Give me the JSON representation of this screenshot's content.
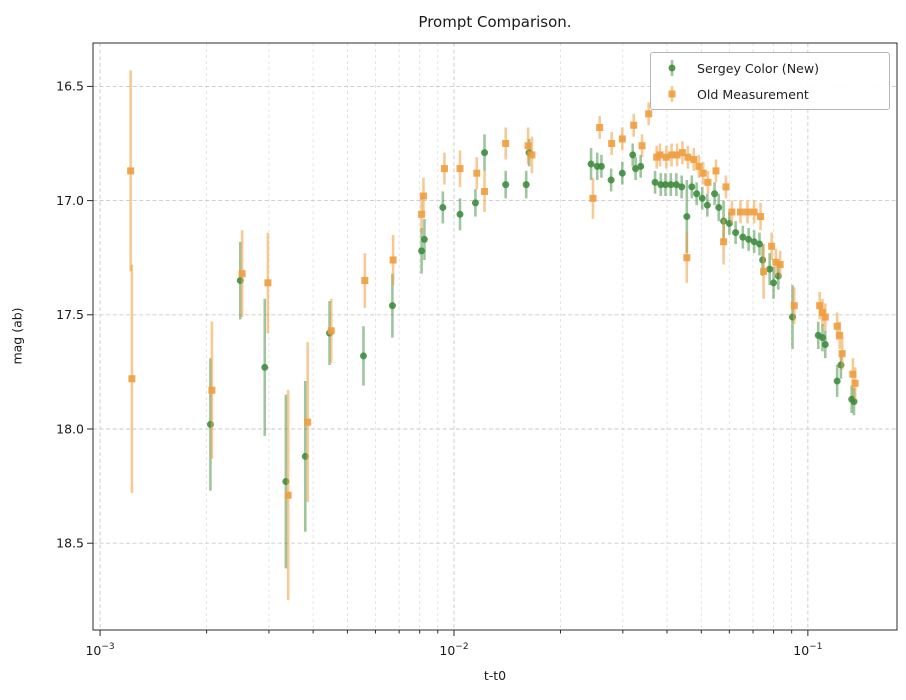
{
  "title": "Prompt Comparison.",
  "colors": {
    "green": "#3d8b3d",
    "orange": "#ef9d3e",
    "grid_major": "#c9c9c9",
    "grid_minor": "#dedede",
    "spine": "#2b2b2b",
    "text": "#1a1a1a",
    "legend_border": "#b6b6b6"
  },
  "chart_data": {
    "type": "scatter",
    "title": "Prompt Comparison.",
    "xlabel": "t-t0",
    "ylabel": "mag (ab)",
    "x_scale": "log",
    "y_inverted": true,
    "grid": {
      "major": true,
      "minor_x": true,
      "style": "dashed"
    },
    "legend_position": "upper right",
    "xlim": {
      "min": 0.000955,
      "max": 0.1786
    },
    "ylim": {
      "top_value": 16.31,
      "bottom_value": 18.88
    },
    "x_axis": {
      "label": "t-t0",
      "major_ticks": [
        {
          "t": 0.001,
          "mantissa": "10",
          "exp": "−3"
        },
        {
          "t": 0.01,
          "mantissa": "10",
          "exp": "−2"
        },
        {
          "t": 0.1,
          "mantissa": "10",
          "exp": "−1"
        }
      ]
    },
    "y_axis": {
      "label": "mag (ab)",
      "ticks": [
        {
          "v": 16.5,
          "label": "16.5"
        },
        {
          "v": 17.0,
          "label": "17.0"
        },
        {
          "v": 17.5,
          "label": "17.5"
        },
        {
          "v": 18.0,
          "label": "18.0"
        },
        {
          "v": 18.5,
          "label": "18.5"
        }
      ]
    },
    "series": [
      {
        "name": "Sergey Color (New)",
        "marker": "circle",
        "color": "#3d8b3d",
        "marker_opacity": 0.88,
        "bar_opacity": 0.5,
        "points": [
          [
            0.00205,
            17.98,
            0.29
          ],
          [
            0.00249,
            17.35,
            0.17
          ],
          [
            0.00292,
            17.73,
            0.3
          ],
          [
            0.00335,
            18.23,
            0.38
          ],
          [
            0.0038,
            18.12,
            0.33
          ],
          [
            0.00445,
            17.58,
            0.14
          ],
          [
            0.00555,
            17.68,
            0.13
          ],
          [
            0.0067,
            17.46,
            0.14
          ],
          [
            0.0081,
            17.22,
            0.1
          ],
          [
            0.00825,
            17.17,
            0.09
          ],
          [
            0.0093,
            17.03,
            0.07
          ],
          [
            0.0104,
            17.06,
            0.07
          ],
          [
            0.0115,
            17.01,
            0.06
          ],
          [
            0.0122,
            16.79,
            0.08
          ],
          [
            0.014,
            16.93,
            0.06
          ],
          [
            0.016,
            16.93,
            0.06
          ],
          [
            0.0163,
            16.79,
            0.06
          ],
          [
            0.0244,
            16.84,
            0.07
          ],
          [
            0.0254,
            16.85,
            0.06
          ],
          [
            0.0261,
            16.85,
            0.05
          ],
          [
            0.0278,
            16.91,
            0.05
          ],
          [
            0.0299,
            16.88,
            0.05
          ],
          [
            0.032,
            16.8,
            0.05
          ],
          [
            0.0326,
            16.86,
            0.05
          ],
          [
            0.0337,
            16.85,
            0.05
          ],
          [
            0.037,
            16.92,
            0.05
          ],
          [
            0.0384,
            16.93,
            0.05
          ],
          [
            0.0396,
            16.93,
            0.05
          ],
          [
            0.041,
            16.93,
            0.05
          ],
          [
            0.0425,
            16.93,
            0.05
          ],
          [
            0.044,
            16.94,
            0.05
          ],
          [
            0.0455,
            17.07,
            0.16
          ],
          [
            0.047,
            16.94,
            0.05
          ],
          [
            0.0485,
            16.97,
            0.05
          ],
          [
            0.0503,
            16.99,
            0.05
          ],
          [
            0.052,
            17.02,
            0.05
          ],
          [
            0.0545,
            16.97,
            0.05
          ],
          [
            0.056,
            17.03,
            0.06
          ],
          [
            0.0578,
            17.09,
            0.09
          ],
          [
            0.06,
            17.1,
            0.05
          ],
          [
            0.0625,
            17.14,
            0.05
          ],
          [
            0.0655,
            17.16,
            0.05
          ],
          [
            0.068,
            17.17,
            0.05
          ],
          [
            0.0705,
            17.18,
            0.05
          ],
          [
            0.073,
            17.19,
            0.05
          ],
          [
            0.0745,
            17.26,
            0.07
          ],
          [
            0.078,
            17.3,
            0.07
          ],
          [
            0.08,
            17.36,
            0.07
          ],
          [
            0.0825,
            17.33,
            0.06
          ],
          [
            0.0905,
            17.51,
            0.14
          ],
          [
            0.107,
            17.59,
            0.06
          ],
          [
            0.11,
            17.6,
            0.06
          ],
          [
            0.112,
            17.63,
            0.06
          ],
          [
            0.121,
            17.79,
            0.07
          ],
          [
            0.124,
            17.72,
            0.06
          ],
          [
            0.133,
            17.87,
            0.06
          ],
          [
            0.135,
            17.88,
            0.06
          ]
        ]
      },
      {
        "name": "Old Measurement",
        "marker": "square",
        "color": "#ef9d3e",
        "marker_opacity": 0.9,
        "bar_opacity": 0.55,
        "points": [
          [
            0.00122,
            16.87,
            0.44
          ],
          [
            0.00123,
            17.78,
            0.5
          ],
          [
            0.00207,
            17.83,
            0.3
          ],
          [
            0.00252,
            17.32,
            0.19
          ],
          [
            0.00298,
            17.36,
            0.22
          ],
          [
            0.0034,
            18.29,
            0.46
          ],
          [
            0.00386,
            17.97,
            0.35
          ],
          [
            0.0045,
            17.57,
            0.14
          ],
          [
            0.0056,
            17.35,
            0.12
          ],
          [
            0.00673,
            17.26,
            0.11
          ],
          [
            0.0081,
            17.06,
            0.08
          ],
          [
            0.0082,
            16.98,
            0.08
          ],
          [
            0.0094,
            16.86,
            0.07
          ],
          [
            0.0104,
            16.86,
            0.08
          ],
          [
            0.0116,
            16.88,
            0.07
          ],
          [
            0.0122,
            16.96,
            0.09
          ],
          [
            0.014,
            16.75,
            0.07
          ],
          [
            0.0162,
            16.76,
            0.08
          ],
          [
            0.0166,
            16.8,
            0.08
          ],
          [
            0.0247,
            16.99,
            0.09
          ],
          [
            0.0258,
            16.68,
            0.05
          ],
          [
            0.0279,
            16.75,
            0.05
          ],
          [
            0.0299,
            16.73,
            0.05
          ],
          [
            0.0322,
            16.67,
            0.05
          ],
          [
            0.034,
            16.76,
            0.05
          ],
          [
            0.0355,
            16.62,
            0.05
          ],
          [
            0.0374,
            16.81,
            0.05
          ],
          [
            0.0382,
            16.8,
            0.05
          ],
          [
            0.0398,
            16.81,
            0.05
          ],
          [
            0.0412,
            16.8,
            0.05
          ],
          [
            0.0427,
            16.8,
            0.05
          ],
          [
            0.0442,
            16.79,
            0.05
          ],
          [
            0.0455,
            17.25,
            0.11
          ],
          [
            0.0458,
            16.81,
            0.05
          ],
          [
            0.0476,
            16.82,
            0.05
          ],
          [
            0.0492,
            16.85,
            0.05
          ],
          [
            0.0506,
            16.88,
            0.05
          ],
          [
            0.0522,
            16.92,
            0.05
          ],
          [
            0.055,
            16.87,
            0.05
          ],
          [
            0.0578,
            17.18,
            0.1
          ],
          [
            0.0587,
            16.94,
            0.05
          ],
          [
            0.061,
            17.05,
            0.05
          ],
          [
            0.0645,
            17.05,
            0.05
          ],
          [
            0.0675,
            17.05,
            0.05
          ],
          [
            0.0705,
            17.05,
            0.05
          ],
          [
            0.0735,
            17.07,
            0.06
          ],
          [
            0.075,
            17.31,
            0.12
          ],
          [
            0.079,
            17.2,
            0.06
          ],
          [
            0.0812,
            17.27,
            0.06
          ],
          [
            0.0835,
            17.28,
            0.06
          ],
          [
            0.0915,
            17.46,
            0.08
          ],
          [
            0.108,
            17.46,
            0.06
          ],
          [
            0.11,
            17.49,
            0.06
          ],
          [
            0.112,
            17.51,
            0.06
          ],
          [
            0.121,
            17.55,
            0.06
          ],
          [
            0.123,
            17.59,
            0.06
          ],
          [
            0.125,
            17.67,
            0.07
          ],
          [
            0.134,
            17.76,
            0.07
          ],
          [
            0.136,
            17.8,
            0.07
          ]
        ]
      }
    ]
  }
}
